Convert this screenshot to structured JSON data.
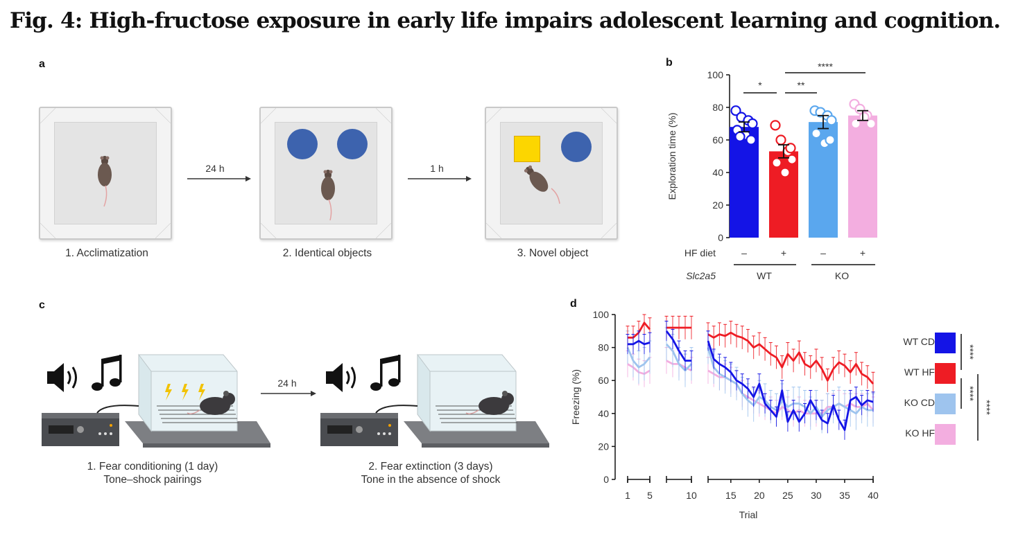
{
  "figure": {
    "title": "Fig. 4: High-fructose exposure in early life impairs adolescent learning and cognition."
  },
  "panel_a": {
    "letter": "a",
    "steps": [
      {
        "caption": "1. Acclimatization"
      },
      {
        "caption": "2. Identical objects"
      },
      {
        "caption": "3. Novel object"
      }
    ],
    "arrows": [
      "24 h",
      "1 h"
    ],
    "colors": {
      "object_circle": "#3d63ae",
      "object_square": "#fcd600"
    }
  },
  "panel_b": {
    "letter": "b",
    "hf_diet_label": "HF diet",
    "gene_label": "Slc2a5",
    "hf_signs": [
      "–",
      "+",
      "–",
      "+"
    ],
    "groups": [
      "WT",
      "KO"
    ],
    "significance": [
      "*",
      "**",
      "****"
    ]
  },
  "panel_c": {
    "letter": "c",
    "arrow": "24 h",
    "captions": [
      {
        "line1": "1. Fear conditioning (1 day)",
        "line2": "Tone–shock pairings"
      },
      {
        "line1": "2. Fear extinction (3 days)",
        "line2": "Tone in the absence of shock"
      }
    ]
  },
  "panel_d": {
    "letter": "d",
    "legend": [
      {
        "label": "WT CD",
        "color": "#1414e6"
      },
      {
        "label": "WT HF",
        "color": "#ee1c24"
      },
      {
        "label": "KO CD",
        "color": "#9ec4ee"
      },
      {
        "label": "KO HF",
        "color": "#f3aee0"
      }
    ],
    "significance": [
      "****",
      "****",
      "****"
    ]
  },
  "chart_data": [
    {
      "type": "bar",
      "panel": "b",
      "ylabel": "Exploration time (%)",
      "ylim": [
        0,
        100
      ],
      "yticks": [
        0,
        20,
        40,
        60,
        80,
        100
      ],
      "categories": [
        "WT –",
        "WT +",
        "KO –",
        "KO +"
      ],
      "values": [
        68,
        53,
        71,
        75
      ],
      "errors": [
        3,
        4,
        4,
        3
      ],
      "colors": [
        "#1414e6",
        "#ee1c24",
        "#5aa7ee",
        "#f3aee0"
      ],
      "points": [
        [
          78,
          74,
          72,
          70,
          66,
          63,
          60,
          62
        ],
        [
          69,
          60,
          53,
          48,
          46,
          40,
          55
        ],
        [
          78,
          77,
          75,
          72,
          64,
          58,
          60
        ],
        [
          82,
          79,
          75,
          70,
          70,
          74
        ]
      ]
    },
    {
      "type": "line",
      "panel": "d",
      "xlabel": "Trial",
      "ylabel": "Freezing (%)",
      "ylim": [
        0,
        100
      ],
      "yticks": [
        0,
        20,
        40,
        60,
        80,
        100
      ],
      "xticks": [
        1,
        5,
        10,
        15,
        20,
        25,
        30,
        35,
        40
      ],
      "segments": [
        [
          1,
          5
        ],
        [
          6,
          10
        ],
        [
          11,
          40
        ]
      ],
      "series": [
        {
          "name": "WT CD",
          "color": "#1414e6",
          "err": 6,
          "values": [
            82,
            82,
            84,
            82,
            83,
            90,
            85,
            78,
            72,
            72,
            84,
            73,
            70,
            68,
            65,
            60,
            58,
            55,
            50,
            58,
            46,
            42,
            38,
            54,
            35,
            42,
            35,
            40,
            48,
            42,
            36,
            34,
            45,
            36,
            30,
            48,
            50,
            45,
            48,
            47
          ]
        },
        {
          "name": "WT HF",
          "color": "#ee1c24",
          "err": 7,
          "values": [
            86,
            86,
            89,
            95,
            91,
            92,
            92,
            92,
            92,
            92,
            88,
            86,
            88,
            87,
            89,
            87,
            86,
            84,
            80,
            82,
            79,
            76,
            74,
            68,
            76,
            72,
            77,
            70,
            68,
            72,
            67,
            60,
            67,
            71,
            69,
            65,
            70,
            64,
            62,
            58
          ]
        },
        {
          "name": "KO CD",
          "color": "#9ec4ee",
          "err": 10,
          "values": [
            80,
            72,
            68,
            70,
            74,
            82,
            78,
            70,
            66,
            70,
            80,
            68,
            64,
            62,
            60,
            58,
            52,
            48,
            45,
            50,
            48,
            44,
            42,
            48,
            44,
            46,
            46,
            44,
            40,
            44,
            38,
            42,
            44,
            46,
            44,
            42,
            40,
            44,
            42,
            42
          ]
        },
        {
          "name": "KO HF",
          "color": "#f3aee0",
          "err": 8,
          "values": [
            70,
            68,
            65,
            64,
            66,
            72,
            70,
            70,
            68,
            66,
            66,
            64,
            62,
            62,
            60,
            58,
            52,
            50,
            48,
            46,
            44,
            42,
            40,
            44,
            42,
            40,
            42,
            40,
            40,
            40,
            40,
            44,
            44,
            46,
            44,
            46,
            44,
            44,
            46,
            42
          ]
        }
      ]
    }
  ]
}
